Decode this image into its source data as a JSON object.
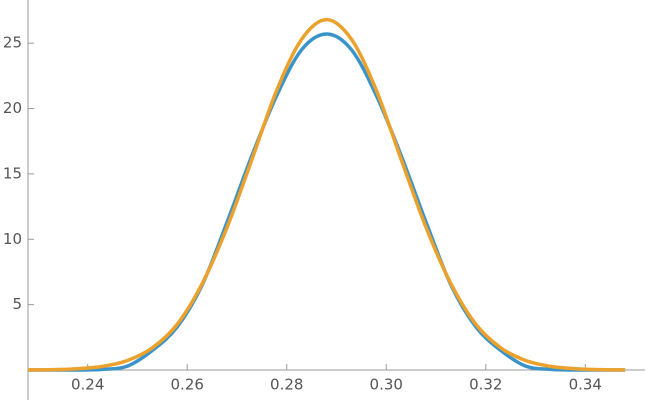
{
  "chart_data": {
    "type": "line",
    "x": [
      0.228,
      0.233,
      0.238,
      0.243,
      0.248,
      0.253,
      0.258,
      0.263,
      0.268,
      0.273,
      0.278,
      0.283,
      0.288,
      0.293,
      0.298,
      0.303,
      0.308,
      0.313,
      0.318,
      0.323,
      0.328,
      0.333,
      0.338,
      0.343,
      0.348
    ],
    "series": [
      {
        "color": "#3b94c9",
        "values": [
          0,
          0,
          0,
          0.05,
          0.3,
          1.5,
          3.3,
          6.5,
          11.3,
          16.4,
          21.0,
          24.5,
          25.7,
          24.5,
          21.0,
          16.4,
          11.3,
          6.5,
          3.3,
          1.5,
          0.3,
          0.05,
          0,
          0,
          0
        ]
      },
      {
        "color": "#eba12c",
        "values": [
          0.01,
          0.03,
          0.1,
          0.28,
          0.73,
          1.7,
          3.5,
          6.6,
          10.9,
          16.1,
          21.4,
          25.3,
          26.8,
          25.3,
          21.4,
          16.1,
          10.9,
          6.6,
          3.5,
          1.7,
          0.73,
          0.28,
          0.1,
          0.03,
          0.01
        ]
      }
    ],
    "xlim": [
      0.228,
      0.352
    ],
    "ylim": [
      0,
      28.3
    ],
    "xticks": [
      0.24,
      0.26,
      0.28,
      {
        "value": 0.3,
        "label": "0.30"
      },
      0.32,
      0.34
    ],
    "yticks": [
      5,
      10,
      15,
      20,
      25
    ]
  }
}
